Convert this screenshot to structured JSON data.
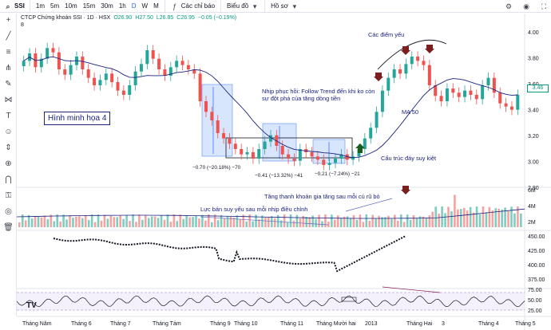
{
  "toolbar": {
    "symbol": "SSI",
    "intervals": [
      "1m",
      "5m",
      "10m",
      "15m",
      "30m",
      "1h",
      "D",
      "W",
      "M"
    ],
    "active_interval": "D",
    "indicators_label": "Các chỉ báo",
    "chart_type_label": "Biểu đồ",
    "profile_label": "Hồ sơ"
  },
  "legend": {
    "title": "CTCP Chứng khoán SSI · 1D · HSX",
    "open": "O26.90",
    "high": "H27.50",
    "low": "L26.85",
    "close": "C26.95",
    "change": "−0.05 (−0.19%)",
    "sub": "8"
  },
  "badge": "Hình minh họa 4",
  "price_tag": "3.46",
  "annotations": {
    "weak_points": "Các điểm yếu",
    "recovery_line1": "Nhịp phục hồi: Follow Trend đến khi ko còn",
    "recovery_line2": "sự đột phá của tăng dòng tiền",
    "ma50": "MA 50",
    "exhaustion": "Cấu trúc đáy suy kiệt",
    "box1": "−0.70 (−20.18%) −70",
    "box2": "−0.41 (−13.32%) −41",
    "box3": "−0.21 (−7.24%) −21",
    "vol_decline": "Lực bán suy yếu sau mỗi nhịp điều chỉnh",
    "vol_rise": "Tăng thanh khoản gia tăng sau mỗi cú rũ bỏ"
  },
  "price_axis": [
    "4.00",
    "3.80",
    "3.60",
    "3.40",
    "3.20",
    "3.00",
    "2.80"
  ],
  "volume_axis": [
    "6M",
    "4M",
    "2M"
  ],
  "index_axis": [
    "450.00",
    "425.00",
    "400.00",
    "375.00"
  ],
  "rsi_axis": [
    "75.00",
    "50.00",
    "25.00"
  ],
  "time_axis": [
    "Tháng Năm",
    "Tháng 6",
    "Tháng 7",
    "Tháng Tám",
    "Tháng 9",
    "Tháng 10",
    "Tháng 11",
    "Tháng Mười hai",
    "2013",
    "Tháng Hai",
    "3",
    "Tháng 4",
    "Tháng 5"
  ],
  "colors": {
    "up": "#26a69a",
    "down": "#ef5350",
    "ma": "#1a237e",
    "box": "#90b8f8"
  },
  "chart_data": {
    "type": "candlestick",
    "y_range": [
      2.7,
      4.05
    ],
    "close": [
      3.78,
      3.85,
      3.72,
      3.8,
      3.9,
      3.86,
      3.7,
      3.65,
      3.74,
      3.82,
      3.7,
      3.62,
      3.55,
      3.6,
      3.66,
      3.58,
      3.5,
      3.46,
      3.55,
      3.68,
      3.75,
      3.88,
      3.8,
      3.7,
      3.64,
      3.72,
      3.78,
      3.74,
      3.7,
      3.66,
      3.4,
      3.3,
      3.22,
      3.1,
      3.05,
      3.0,
      2.95,
      2.9,
      2.92,
      2.86,
      2.95,
      3.02,
      3.08,
      2.98,
      2.9,
      2.86,
      2.84,
      2.95,
      2.92,
      2.88,
      2.85,
      2.8,
      2.82,
      2.86,
      2.9,
      2.85,
      2.88,
      2.95,
      3.05,
      3.15,
      3.3,
      3.5,
      3.62,
      3.7,
      3.66,
      3.75,
      3.82,
      3.78,
      3.74,
      3.55,
      3.45,
      3.4,
      3.52,
      3.48,
      3.44,
      3.5,
      3.46,
      3.42,
      3.55,
      3.62,
      3.48,
      3.38,
      3.35,
      3.32,
      3.46
    ]
  }
}
